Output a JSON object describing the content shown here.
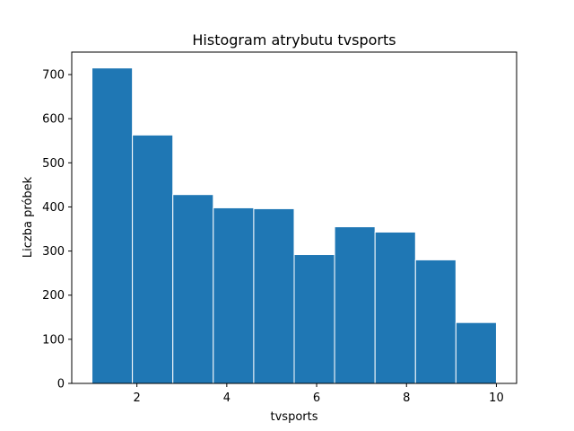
{
  "chart_data": {
    "type": "bar",
    "title": "Histogram atrybutu tvsports",
    "xlabel": "tvsports",
    "ylabel": "Liczba próbek",
    "bins": [
      {
        "x0": 1.0,
        "x1": 1.9,
        "value": 715
      },
      {
        "x0": 1.9,
        "x1": 2.8,
        "value": 563
      },
      {
        "x0": 2.8,
        "x1": 3.7,
        "value": 428
      },
      {
        "x0": 3.7,
        "x1": 4.6,
        "value": 398
      },
      {
        "x0": 4.6,
        "x1": 5.5,
        "value": 396
      },
      {
        "x0": 5.5,
        "x1": 6.4,
        "value": 292
      },
      {
        "x0": 6.4,
        "x1": 7.3,
        "value": 355
      },
      {
        "x0": 7.3,
        "x1": 8.2,
        "value": 343
      },
      {
        "x0": 8.2,
        "x1": 9.1,
        "value": 280
      },
      {
        "x0": 9.1,
        "x1": 10.0,
        "value": 138
      }
    ],
    "xlim": [
      0.55,
      10.45
    ],
    "ylim": [
      0,
      751
    ],
    "xticks": [
      2,
      4,
      6,
      8,
      10
    ],
    "yticks": [
      0,
      100,
      200,
      300,
      400,
      500,
      600,
      700
    ],
    "bar_color": "#1f77b4",
    "edge_color": "#ffffff",
    "grid": false,
    "legend": false
  }
}
